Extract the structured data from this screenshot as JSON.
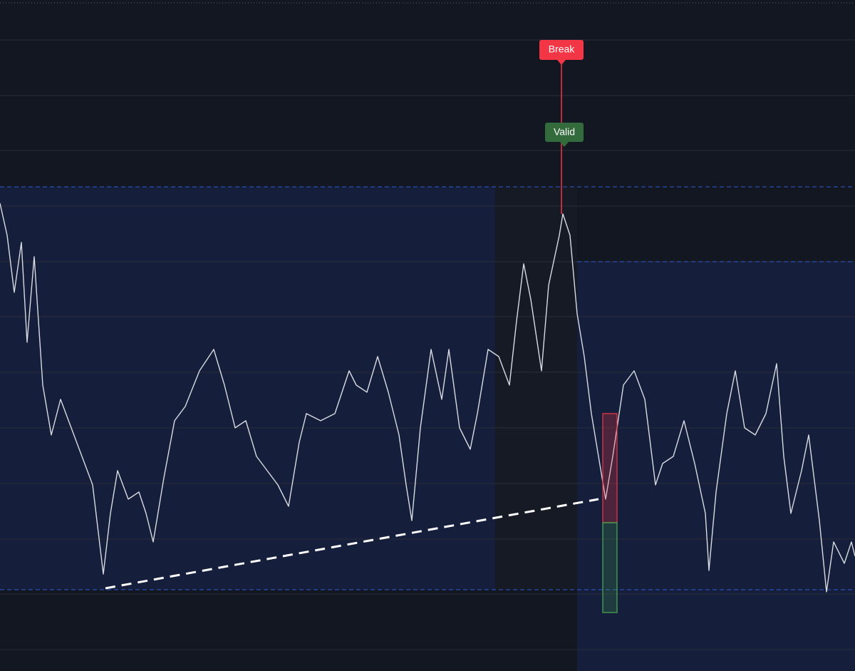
{
  "annotations": {
    "break": "Break",
    "valid": "Valid"
  }
}
